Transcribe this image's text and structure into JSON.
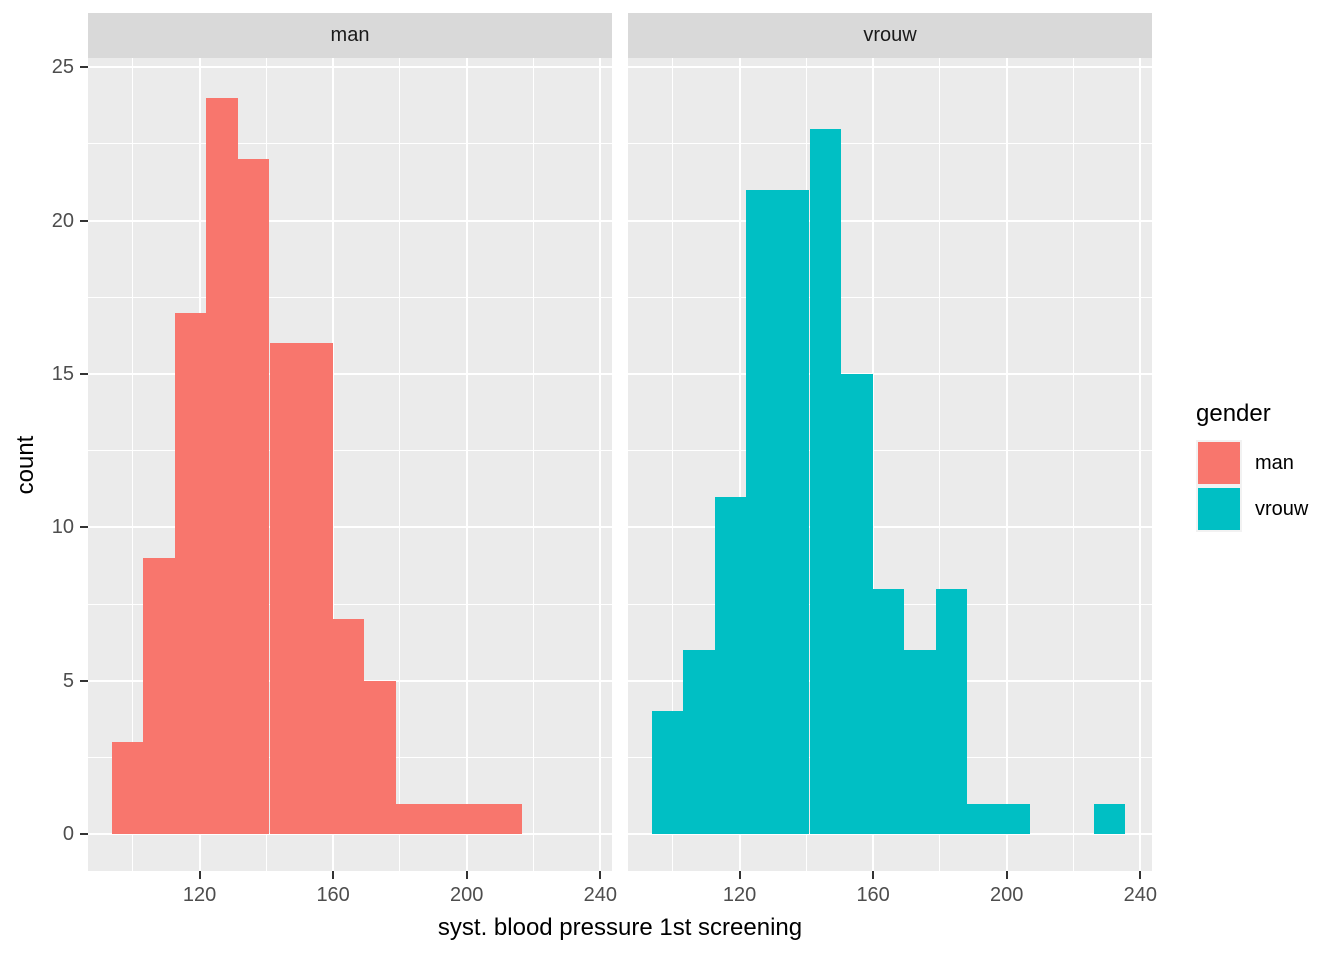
{
  "figure": {
    "background": "#ffffff",
    "panel_bg": "#ebebeb",
    "strip_bg": "#d9d9d9",
    "grid_color": "#ffffff",
    "tick_mark_color": "#333333",
    "tick_label_color": "#4d4d4d"
  },
  "axes": {
    "x_title": "syst. blood pressure 1st screening",
    "y_title": "count"
  },
  "legend": {
    "title": "gender",
    "items": [
      {
        "label": "man",
        "color": "#f8766d"
      },
      {
        "label": "vrouw",
        "color": "#00bfc4"
      }
    ]
  },
  "chart_data": {
    "type": "bar",
    "subtype": "faceted-histogram",
    "title": "",
    "xlabel": "syst. blood pressure 1st screening",
    "ylabel": "count",
    "facet_variable": "gender",
    "legend_position": "right",
    "grid": true,
    "bin_start": 93.7,
    "bin_width": 9.45,
    "x_domain": [
      86.6,
      243.5
    ],
    "y_domain": [
      -1.2,
      25.3
    ],
    "x_ticks": [
      120,
      160,
      200,
      240
    ],
    "x_minor_ticks": [
      100,
      140,
      180,
      220
    ],
    "y_ticks": [
      0,
      5,
      10,
      15,
      20,
      25
    ],
    "y_minor_ticks": [
      2.5,
      7.5,
      12.5,
      17.5,
      22.5
    ],
    "facets": [
      {
        "label": "man",
        "color": "#f8766d",
        "counts": [
          3,
          9,
          17,
          24,
          22,
          16,
          16,
          7,
          5,
          1,
          1,
          1,
          1
        ]
      },
      {
        "label": "vrouw",
        "color": "#00bfc4",
        "counts": [
          4,
          6,
          11,
          21,
          21,
          23,
          15,
          8,
          6,
          8,
          1,
          1,
          0,
          0,
          1
        ]
      }
    ]
  }
}
